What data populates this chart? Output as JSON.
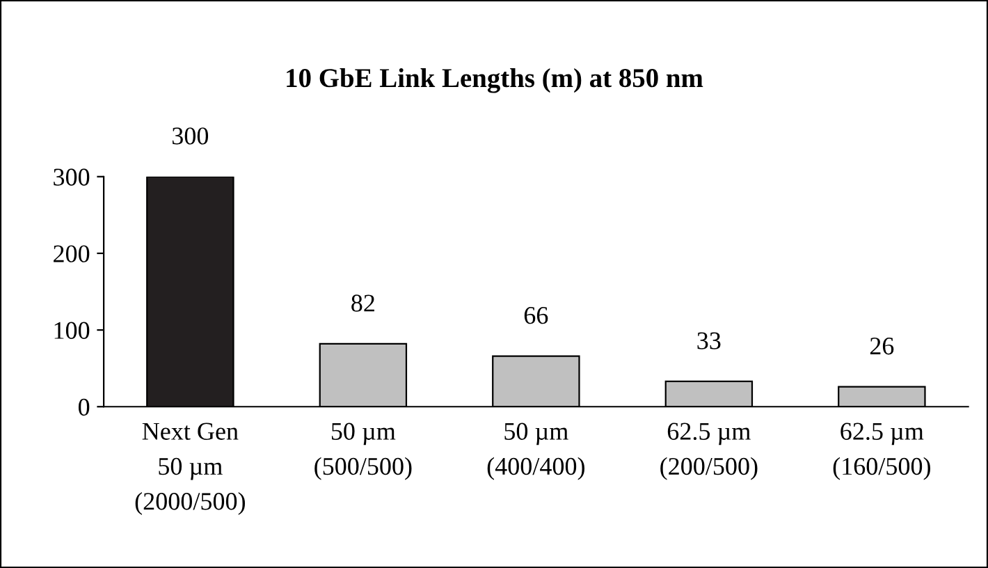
{
  "chart_data": {
    "type": "bar",
    "title": "10 GbE Link Lengths (m) at 850 nm",
    "categories": [
      "Next Gen\n50 µm\n(2000/500)",
      "50 µm\n(500/500)",
      "50 µm\n(400/400)",
      "62.5 µm\n(200/500)",
      "62.5 µm\n(160/500)"
    ],
    "values": [
      300,
      82,
      66,
      33,
      26
    ],
    "colors": [
      "#231f20",
      "#c0c0c0",
      "#c0c0c0",
      "#c0c0c0",
      "#c0c0c0"
    ],
    "ylim": [
      0,
      300
    ],
    "yticks": [
      0,
      100,
      200,
      300
    ],
    "grid": false,
    "data_labels": true
  }
}
